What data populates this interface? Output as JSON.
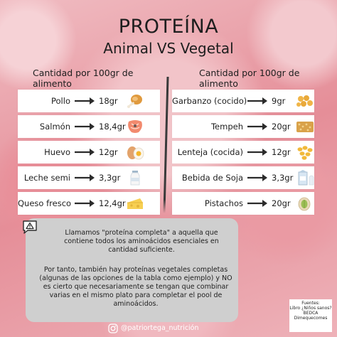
{
  "title": "PROTEÍNA",
  "subtitle": "Animal VS Vegetal",
  "columns": {
    "left_header": "Cantidad por 100gr de alimento",
    "right_header": "Cantidad por 100gr de alimento"
  },
  "animal": [
    {
      "name": "Pollo",
      "amount": "18gr",
      "icon": "chicken-leg-icon"
    },
    {
      "name": "Salmón",
      "amount": "18,4gr",
      "icon": "salmon-steak-icon"
    },
    {
      "name": "Huevo",
      "amount": "12gr",
      "icon": "egg-icon"
    },
    {
      "name": "Leche semi",
      "amount": "3,3gr",
      "icon": "milk-bottle-icon"
    },
    {
      "name": "Queso fresco",
      "amount": "12,4gr",
      "icon": "cheese-icon"
    }
  ],
  "vegetal": [
    {
      "name": "Garbanzo (cocido)",
      "amount": "9gr",
      "icon": "chickpeas-icon"
    },
    {
      "name": "Tempeh",
      "amount": "20gr",
      "icon": "tempeh-icon"
    },
    {
      "name": "Lenteja (cocida)",
      "amount": "12gr",
      "icon": "lentils-icon"
    },
    {
      "name": "Bebida de Soja",
      "amount": "3,3gr",
      "icon": "soy-drink-icon"
    },
    {
      "name": "Pistachos",
      "amount": "20gr",
      "icon": "pistachio-icon"
    }
  ],
  "info": {
    "p1": "Llamamos \"proteína completa\" a aquella que contiene todos los aminoácidos esenciales en cantidad suficiente.",
    "p2": "Por tanto, también hay proteínas vegetales completas (algunas de las opciones de la tabla como ejemplo) y NO es cierto que necesariamente se tengan que combinar varias en el mismo plato para completar el pool de aminoácidos."
  },
  "handle": "@patriortega_nutrición",
  "sources": [
    "Fuentes:",
    "Libro ¿Niños sanos?",
    "BEDCA",
    "Dimequecomes"
  ],
  "colors": {
    "row_bg": "#ffffff",
    "info_bg": "#cfcfcf",
    "text": "#1e1e1e",
    "arrow": "#2b2b2b"
  }
}
